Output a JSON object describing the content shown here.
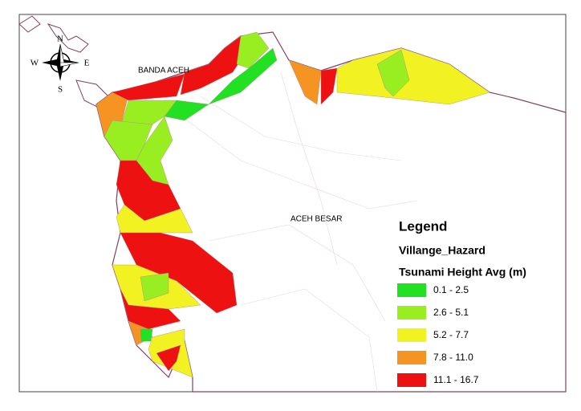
{
  "compass": {
    "north": "N",
    "east": "E",
    "south": "S",
    "west": "W"
  },
  "places": {
    "banda_aceh": "BANDA ACEH",
    "aceh_besar": "ACEH BESAR"
  },
  "legend": {
    "title": "Legend",
    "layer": "Villange_Hazard",
    "field": "Tsunami Height Avg (m)",
    "classes": [
      {
        "label": "0.1 - 2.5",
        "color": "#22e022"
      },
      {
        "label": "2.6 - 5.1",
        "color": "#99ee22"
      },
      {
        "label": "5.2 - 7.7",
        "color": "#f2f222"
      },
      {
        "label": "7.8 - 11.0",
        "color": "#f59422"
      },
      {
        "label": "11.1 - 16.7",
        "color": "#ee1111"
      }
    ]
  }
}
